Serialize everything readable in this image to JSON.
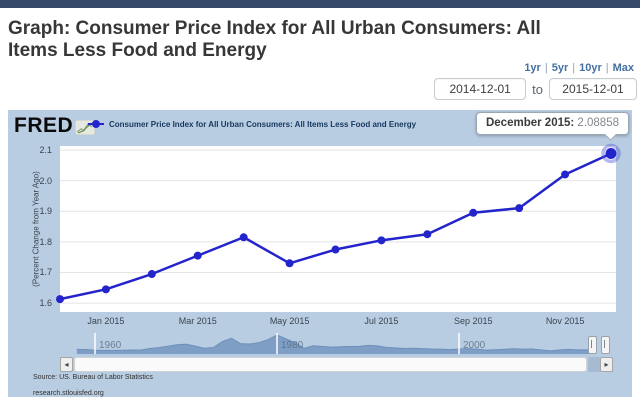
{
  "page": {
    "title_line1": "Graph: Consumer Price Index for All Urban Consumers: All",
    "title_line2": "Items Less Food and Energy"
  },
  "range_selector": {
    "links": [
      "1yr",
      "5yr",
      "10yr",
      "Max"
    ],
    "separator": "|"
  },
  "date_range": {
    "start": "2014-12-01",
    "to_label": "to",
    "end": "2015-12-01"
  },
  "header": {
    "logo_text": "FRED",
    "legend_label": "Consumer Price Index for All Urban Consumers: All Items Less Food and Energy",
    "tooltip_label": "December 2015:",
    "tooltip_value": "2.08858"
  },
  "chart_data": [
    {
      "type": "line",
      "name": "main-series",
      "title": "Consumer Price Index for All Urban Consumers: All Items Less Food and Energy",
      "ylabel": "(Percent Change from Year Ago)",
      "x": [
        "2014-12",
        "2015-01",
        "2015-02",
        "2015-03",
        "2015-04",
        "2015-05",
        "2015-06",
        "2015-07",
        "2015-08",
        "2015-09",
        "2015-10",
        "2015-11",
        "2015-12"
      ],
      "values": [
        1.613,
        1.645,
        1.695,
        1.755,
        1.815,
        1.73,
        1.775,
        1.805,
        1.825,
        1.895,
        1.91,
        2.02,
        2.08858
      ],
      "yticks": [
        1.6,
        1.7,
        1.8,
        1.9,
        2.0,
        2.1
      ],
      "ylim": [
        1.571,
        2.113
      ],
      "xtick_labels": [
        "Jan 2015",
        "Mar 2015",
        "May 2015",
        "Jul 2015",
        "Sep 2015",
        "Nov 2015"
      ],
      "grid": true,
      "legend_position": "top-left",
      "highlight_last_point": true
    },
    {
      "type": "area",
      "name": "full-history-timeline",
      "xtick_labels": [
        "1960",
        "1980",
        "2000"
      ],
      "xtick_years": [
        1960,
        1980,
        2000
      ],
      "xlim": [
        1958,
        2016
      ],
      "ylim": [
        0,
        14
      ],
      "points": [
        [
          1958,
          2.1
        ],
        [
          1959,
          2.0
        ],
        [
          1960,
          1.4
        ],
        [
          1961,
          1.3
        ],
        [
          1962,
          1.3
        ],
        [
          1963,
          1.4
        ],
        [
          1964,
          1.6
        ],
        [
          1965,
          1.5
        ],
        [
          1966,
          2.8
        ],
        [
          1967,
          3.5
        ],
        [
          1968,
          4.6
        ],
        [
          1969,
          5.8
        ],
        [
          1970,
          6.3
        ],
        [
          1971,
          4.7
        ],
        [
          1972,
          3.0
        ],
        [
          1973,
          3.6
        ],
        [
          1974,
          8.3
        ],
        [
          1975,
          11.0
        ],
        [
          1976,
          6.7
        ],
        [
          1977,
          6.4
        ],
        [
          1978,
          7.4
        ],
        [
          1979,
          9.8
        ],
        [
          1980,
          13.6
        ],
        [
          1981,
          10.4
        ],
        [
          1982,
          7.4
        ],
        [
          1983,
          3.0
        ],
        [
          1984,
          5.0
        ],
        [
          1985,
          4.4
        ],
        [
          1986,
          3.9
        ],
        [
          1987,
          4.2
        ],
        [
          1988,
          4.4
        ],
        [
          1989,
          4.5
        ],
        [
          1990,
          5.3
        ],
        [
          1991,
          4.9
        ],
        [
          1992,
          3.7
        ],
        [
          1993,
          3.3
        ],
        [
          1994,
          2.8
        ],
        [
          1995,
          3.0
        ],
        [
          1996,
          2.7
        ],
        [
          1997,
          2.4
        ],
        [
          1998,
          2.3
        ],
        [
          1999,
          1.9
        ],
        [
          2000,
          2.4
        ],
        [
          2001,
          2.7
        ],
        [
          2002,
          2.3
        ],
        [
          2003,
          1.5
        ],
        [
          2004,
          1.8
        ],
        [
          2005,
          2.2
        ],
        [
          2006,
          2.6
        ],
        [
          2007,
          2.3
        ],
        [
          2008,
          2.4
        ],
        [
          2009,
          1.7
        ],
        [
          2010,
          0.9
        ],
        [
          2011,
          1.6
        ],
        [
          2012,
          2.1
        ],
        [
          2013,
          1.7
        ],
        [
          2014,
          1.7
        ],
        [
          2015,
          2.0
        ]
      ]
    }
  ],
  "scrollbar": {
    "left_arrow": "◂",
    "right_arrow": "▸"
  },
  "footer": {
    "source": "Source: US. Bureau of Labor Statistics",
    "site": "research.stlouisfed.org"
  },
  "colors": {
    "topbar": "#35496b",
    "panel_bg": "#b9cde2",
    "line": "#2424cc",
    "grid": "#e4e4e4",
    "link": "#4470a3",
    "mini_area": "#7e9ec5",
    "mini_stroke": "#6c90bb",
    "mini_gridline": "#ffffff"
  }
}
